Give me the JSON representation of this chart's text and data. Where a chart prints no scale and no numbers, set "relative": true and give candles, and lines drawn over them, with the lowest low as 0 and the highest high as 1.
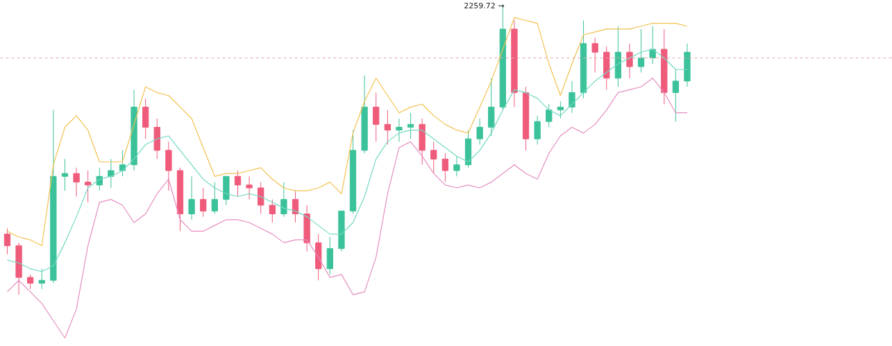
{
  "chart_data": {
    "type": "candlestick",
    "relative": true,
    "categories": [
      null,
      null,
      null,
      null,
      null,
      null,
      null,
      null,
      null,
      null,
      null,
      null,
      null,
      null,
      null,
      null,
      null,
      null,
      null,
      null,
      null,
      null,
      null,
      null,
      null,
      null,
      null,
      null,
      null,
      null,
      null,
      null,
      null,
      null,
      null,
      null,
      null,
      null,
      null,
      null,
      null,
      null,
      null,
      null,
      null,
      null,
      null,
      null,
      null,
      null,
      null,
      null,
      null,
      null,
      null,
      null,
      null,
      null,
      null,
      null
    ],
    "ohlc": [
      [
        0.21,
        0.23,
        0.14,
        0.17
      ],
      [
        0.17,
        0.18,
        0.0,
        0.06
      ],
      [
        0.06,
        0.07,
        0.02,
        0.04
      ],
      [
        0.04,
        0.09,
        0.02,
        0.05
      ],
      [
        0.05,
        0.64,
        0.04,
        0.41
      ],
      [
        0.41,
        0.47,
        0.36,
        0.42
      ],
      [
        0.42,
        0.44,
        0.34,
        0.39
      ],
      [
        0.39,
        0.43,
        0.32,
        0.38
      ],
      [
        0.38,
        0.44,
        0.36,
        0.41
      ],
      [
        0.41,
        0.47,
        0.37,
        0.43
      ],
      [
        0.43,
        0.5,
        0.41,
        0.45
      ],
      [
        0.45,
        0.71,
        0.43,
        0.65
      ],
      [
        0.65,
        0.68,
        0.54,
        0.58
      ],
      [
        0.58,
        0.61,
        0.47,
        0.5
      ],
      [
        0.5,
        0.53,
        0.36,
        0.43
      ],
      [
        0.43,
        0.44,
        0.22,
        0.28
      ],
      [
        0.28,
        0.41,
        0.26,
        0.33
      ],
      [
        0.33,
        0.37,
        0.27,
        0.29
      ],
      [
        0.29,
        0.39,
        0.28,
        0.33
      ],
      [
        0.33,
        0.41,
        0.31,
        0.41
      ],
      [
        0.41,
        0.43,
        0.34,
        0.38
      ],
      [
        0.38,
        0.41,
        0.33,
        0.37
      ],
      [
        0.37,
        0.39,
        0.28,
        0.31
      ],
      [
        0.31,
        0.33,
        0.25,
        0.28
      ],
      [
        0.28,
        0.39,
        0.27,
        0.33
      ],
      [
        0.33,
        0.36,
        0.25,
        0.28
      ],
      [
        0.28,
        0.31,
        0.15,
        0.18
      ],
      [
        0.18,
        0.21,
        0.05,
        0.09
      ],
      [
        0.09,
        0.2,
        0.07,
        0.16
      ],
      [
        0.16,
        0.29,
        0.15,
        0.29
      ],
      [
        0.29,
        0.57,
        0.28,
        0.5
      ],
      [
        0.5,
        0.76,
        0.49,
        0.65
      ],
      [
        0.65,
        0.7,
        0.53,
        0.59
      ],
      [
        0.59,
        0.64,
        0.52,
        0.57
      ],
      [
        0.57,
        0.61,
        0.53,
        0.58
      ],
      [
        0.58,
        0.63,
        0.54,
        0.59
      ],
      [
        0.59,
        0.61,
        0.45,
        0.5
      ],
      [
        0.5,
        0.53,
        0.42,
        0.47
      ],
      [
        0.47,
        0.49,
        0.39,
        0.43
      ],
      [
        0.43,
        0.48,
        0.41,
        0.45
      ],
      [
        0.45,
        0.57,
        0.44,
        0.54
      ],
      [
        0.54,
        0.61,
        0.52,
        0.58
      ],
      [
        0.58,
        0.75,
        0.55,
        0.65
      ],
      [
        0.65,
        1.0,
        0.64,
        0.92
      ],
      [
        0.92,
        0.95,
        0.65,
        0.7
      ],
      [
        0.7,
        0.72,
        0.5,
        0.54
      ],
      [
        0.54,
        0.62,
        0.52,
        0.6
      ],
      [
        0.6,
        0.66,
        0.58,
        0.64
      ],
      [
        0.64,
        0.67,
        0.61,
        0.65
      ],
      [
        0.65,
        0.74,
        0.63,
        0.7
      ],
      [
        0.7,
        0.95,
        0.68,
        0.87
      ],
      [
        0.87,
        0.89,
        0.77,
        0.84
      ],
      [
        0.84,
        0.86,
        0.71,
        0.75
      ],
      [
        0.75,
        0.93,
        0.72,
        0.84
      ],
      [
        0.84,
        0.87,
        0.75,
        0.79
      ],
      [
        0.79,
        0.92,
        0.77,
        0.82
      ],
      [
        0.82,
        0.93,
        0.8,
        0.85
      ],
      [
        0.85,
        0.92,
        0.66,
        0.7
      ],
      [
        0.7,
        0.78,
        0.6,
        0.74
      ],
      [
        0.74,
        0.87,
        0.72,
        0.84
      ]
    ],
    "series": [
      {
        "type": "line",
        "color": "#f2c14e",
        "values": [
          0.22,
          0.2,
          0.19,
          0.17,
          0.45,
          0.58,
          0.62,
          0.57,
          0.46,
          0.46,
          0.46,
          0.59,
          0.72,
          0.7,
          0.69,
          0.65,
          0.61,
          0.51,
          0.41,
          0.42,
          0.42,
          0.43,
          0.44,
          0.4,
          0.37,
          0.36,
          0.36,
          0.37,
          0.39,
          0.35,
          0.56,
          0.67,
          0.75,
          0.69,
          0.63,
          0.65,
          0.66,
          0.62,
          0.59,
          0.57,
          0.56,
          0.65,
          0.74,
          0.85,
          0.96,
          0.95,
          0.94,
          0.8,
          0.69,
          0.8,
          0.9,
          0.91,
          0.92,
          0.92,
          0.92,
          0.93,
          0.94,
          0.94,
          0.94,
          0.93
        ]
      },
      {
        "type": "line",
        "color": "#72d8c2",
        "values": [
          0.12,
          0.11,
          0.09,
          0.08,
          0.1,
          0.18,
          0.27,
          0.37,
          0.4,
          0.41,
          0.43,
          0.47,
          0.52,
          0.54,
          0.55,
          0.5,
          0.45,
          0.4,
          0.37,
          0.35,
          0.34,
          0.35,
          0.34,
          0.32,
          0.3,
          0.29,
          0.27,
          0.24,
          0.21,
          0.21,
          0.25,
          0.34,
          0.47,
          0.53,
          0.56,
          0.57,
          0.57,
          0.54,
          0.51,
          0.48,
          0.46,
          0.5,
          0.56,
          0.64,
          0.71,
          0.7,
          0.68,
          0.64,
          0.62,
          0.66,
          0.7,
          0.74,
          0.77,
          0.8,
          0.82,
          0.84,
          0.85,
          0.82,
          0.78,
          0.78
        ]
      },
      {
        "type": "line",
        "color": "#e68cc0",
        "values": [
          0.01,
          0.05,
          0.01,
          -0.03,
          -0.09,
          -0.15,
          -0.05,
          0.17,
          0.32,
          0.33,
          0.31,
          0.25,
          0.28,
          0.35,
          0.4,
          0.26,
          0.22,
          0.22,
          0.24,
          0.26,
          0.26,
          0.25,
          0.23,
          0.21,
          0.18,
          0.19,
          0.19,
          0.13,
          0.06,
          0.07,
          0.0,
          0.01,
          0.13,
          0.35,
          0.51,
          0.53,
          0.48,
          0.42,
          0.38,
          0.37,
          0.38,
          0.37,
          0.39,
          0.42,
          0.45,
          0.42,
          0.4,
          0.49,
          0.55,
          0.58,
          0.56,
          0.59,
          0.64,
          0.7,
          0.71,
          0.72,
          0.75,
          0.7,
          0.63,
          0.63
        ]
      }
    ],
    "ref_lines": [
      {
        "axis": "y",
        "value": 0.82,
        "color": "#e8a3ab",
        "line_style": "dashed"
      }
    ],
    "annotations": [
      "2259.72 →"
    ]
  }
}
